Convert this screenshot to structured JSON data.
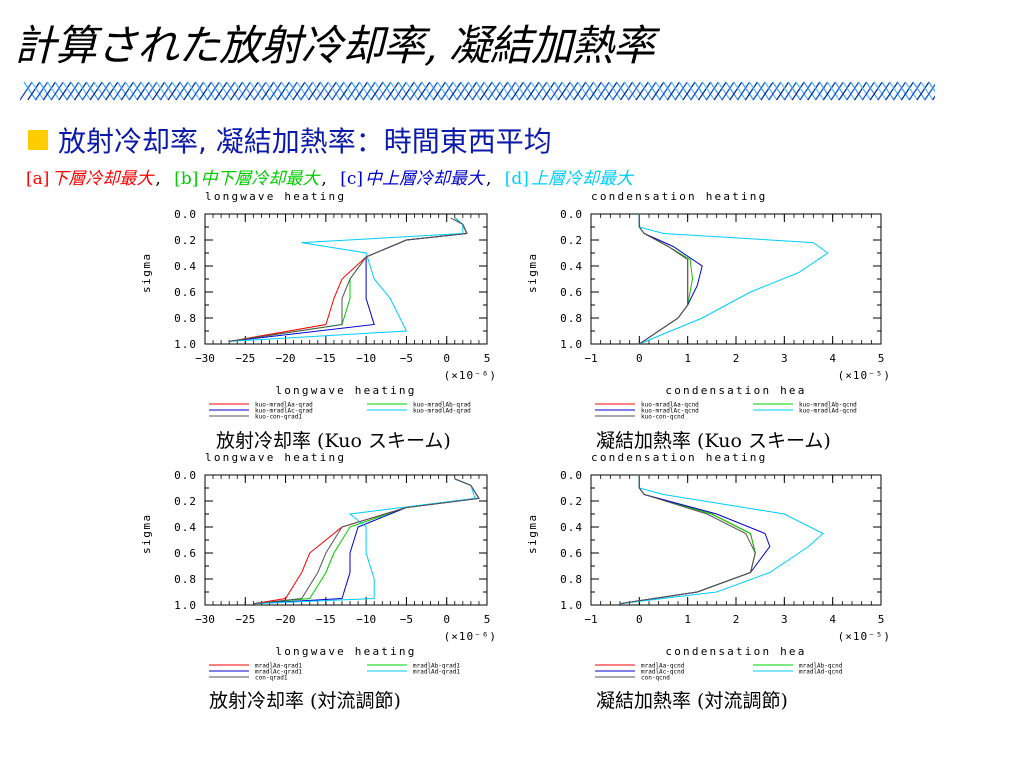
{
  "title": "計算された放射冷却率, 凝結加熱率",
  "subtitle": "放射冷却率, 凝結加熱率：時間東西平均",
  "cases": [
    {
      "tag": "[a]",
      "text": "下層冷却最大",
      "sep": ",",
      "color": "#ff0000"
    },
    {
      "tag": "[b]",
      "text": "中下層冷却最大",
      "sep": ",",
      "color": "#00cc00"
    },
    {
      "tag": "[c]",
      "text": "中上層冷却最大",
      "sep": ",",
      "color": "#0000cc"
    },
    {
      "tag": "[d]",
      "text": "上層冷却最大",
      "sep": "",
      "color": "#00ccff"
    }
  ],
  "colors": {
    "a": "#ff0000",
    "b": "#00cc00",
    "c": "#0000cc",
    "d": "#00ccff",
    "con": "#555555"
  },
  "captions": {
    "tl": "放射冷却率 (Kuo スキーム)",
    "tr": "凝結加熱率 (Kuo スキーム)",
    "bl": "放射冷却率 (対流調節)",
    "br": "凝結加熱率 (対流調節)"
  },
  "chart_data": [
    {
      "id": "tl",
      "type": "line",
      "title": "longwave heating",
      "xtitle": "longwave heating",
      "ylabel": "sigma",
      "exponent": "(×10⁻⁶)",
      "xlim": [
        -30,
        5
      ],
      "xticks": [
        -30,
        -25,
        -20,
        -15,
        -10,
        -5,
        0,
        5
      ],
      "ylim": [
        0,
        1
      ],
      "yticks": [
        0.0,
        0.2,
        0.4,
        0.6,
        0.8,
        1.0
      ],
      "legend": [
        "kuo-mradlAa-qrad",
        "kuo-mradlAb-qrad",
        "kuo-mradlAc-qrad",
        "kuo-mradlAd-qrad",
        "kuo-con-qrad1"
      ],
      "series": [
        {
          "name": "kuo-mradlAa-qrad",
          "color": "#ff0000",
          "x": [
            1,
            2,
            2.5,
            -5,
            -10,
            -13,
            -14,
            -15,
            -27
          ],
          "y": [
            0.03,
            0.08,
            0.15,
            0.2,
            0.33,
            0.5,
            0.65,
            0.85,
            0.98
          ]
        },
        {
          "name": "kuo-mradlAb-qrad",
          "color": "#00cc00",
          "x": [
            1,
            2,
            2.5,
            -5,
            -10,
            -12,
            -12,
            -13,
            -27
          ],
          "y": [
            0.03,
            0.08,
            0.15,
            0.2,
            0.33,
            0.5,
            0.65,
            0.85,
            0.98
          ]
        },
        {
          "name": "kuo-mradlAc-qrad",
          "color": "#0000cc",
          "x": [
            1,
            2,
            2.5,
            -5,
            -10,
            -10,
            -10,
            -9,
            -27
          ],
          "y": [
            0.03,
            0.08,
            0.15,
            0.2,
            0.33,
            0.5,
            0.65,
            0.85,
            0.98
          ]
        },
        {
          "name": "kuo-mradlAd-qrad",
          "color": "#00ccff",
          "x": [
            1,
            2,
            2,
            -18,
            -10,
            -9,
            -7,
            -5,
            -27
          ],
          "y": [
            0.03,
            0.08,
            0.15,
            0.22,
            0.3,
            0.5,
            0.65,
            0.9,
            0.98
          ]
        },
        {
          "name": "kuo-con-qrad1",
          "color": "#555555",
          "x": [
            0.5,
            2,
            2.5,
            -5,
            -10,
            -12,
            -13,
            -13,
            -27
          ],
          "y": [
            0.03,
            0.08,
            0.15,
            0.2,
            0.33,
            0.5,
            0.65,
            0.85,
            0.98
          ]
        }
      ]
    },
    {
      "id": "tr",
      "type": "line",
      "title": "condensation heating",
      "xtitle": "condensation hea",
      "ylabel": "sigma",
      "exponent": "(×10⁻⁵)",
      "xlim": [
        -1,
        5
      ],
      "xticks": [
        -1,
        0,
        1,
        2,
        3,
        4,
        5
      ],
      "ylim": [
        0,
        1
      ],
      "yticks": [
        0.0,
        0.2,
        0.4,
        0.6,
        0.8,
        1.0
      ],
      "legend": [
        "kuo-mradlAa-qcnd",
        "kuo-mradlAb-qcnd",
        "kuo-mradlAc-qcnd",
        "kuo-mradlAd-qcnd",
        "kuo-con-qcnd"
      ],
      "series": [
        {
          "name": "kuo-mradlAa-qcnd",
          "color": "#ff0000",
          "x": [
            0,
            0,
            0.1,
            0.6,
            1.0,
            1.0,
            1.0,
            0.8,
            0
          ],
          "y": [
            0.0,
            0.1,
            0.15,
            0.25,
            0.35,
            0.5,
            0.7,
            0.8,
            1.0
          ]
        },
        {
          "name": "kuo-mradlAb-qcnd",
          "color": "#00cc00",
          "x": [
            0,
            0,
            0.1,
            0.6,
            1.05,
            1.1,
            1.0,
            0.8,
            0
          ],
          "y": [
            0.0,
            0.1,
            0.15,
            0.25,
            0.35,
            0.5,
            0.7,
            0.8,
            1.0
          ]
        },
        {
          "name": "kuo-mradlAc-qcnd",
          "color": "#0000cc",
          "x": [
            0,
            0,
            0.1,
            0.7,
            1.3,
            1.2,
            1.0,
            0.8,
            0
          ],
          "y": [
            0.0,
            0.1,
            0.15,
            0.25,
            0.4,
            0.55,
            0.7,
            0.8,
            1.0
          ]
        },
        {
          "name": "kuo-mradlAd-qcnd",
          "color": "#00ccff",
          "x": [
            0,
            0,
            0.5,
            3.6,
            3.9,
            3.3,
            2.3,
            1.3,
            0
          ],
          "y": [
            0.0,
            0.1,
            0.15,
            0.22,
            0.3,
            0.45,
            0.6,
            0.8,
            1.0
          ]
        },
        {
          "name": "kuo-con-qcnd",
          "color": "#555555",
          "x": [
            0,
            0,
            0.1,
            0.6,
            1.0,
            1.0,
            1.0,
            0.8,
            0
          ],
          "y": [
            0.0,
            0.1,
            0.15,
            0.25,
            0.35,
            0.5,
            0.7,
            0.8,
            1.0
          ]
        }
      ]
    },
    {
      "id": "bl",
      "type": "line",
      "title": "longwave heating",
      "xtitle": "longwave heating",
      "ylabel": "sigma",
      "exponent": "(×10⁻⁶)",
      "xlim": [
        -30,
        5
      ],
      "xticks": [
        -30,
        -25,
        -20,
        -15,
        -10,
        -5,
        0,
        5
      ],
      "ylim": [
        0,
        1
      ],
      "yticks": [
        0.0,
        0.2,
        0.4,
        0.6,
        0.8,
        1.0
      ],
      "legend": [
        "mradlAa-qrad1",
        "mradlAb-qrad1",
        "mradlAc-qrad1",
        "mradlAd-qrad1",
        "con-qrad1"
      ],
      "series": [
        {
          "name": "mradlAa-qrad1",
          "color": "#ff0000",
          "x": [
            1,
            3,
            4,
            -5,
            -13,
            -17,
            -18,
            -20,
            -24
          ],
          "y": [
            0.03,
            0.08,
            0.18,
            0.25,
            0.4,
            0.6,
            0.75,
            0.95,
            0.99
          ]
        },
        {
          "name": "mradlAb-qrad1",
          "color": "#00cc00",
          "x": [
            1,
            3,
            4,
            -5,
            -12,
            -14,
            -15,
            -17,
            -24
          ],
          "y": [
            0.03,
            0.08,
            0.18,
            0.25,
            0.4,
            0.6,
            0.75,
            0.95,
            0.99
          ]
        },
        {
          "name": "mradlAc-qrad1",
          "color": "#0000cc",
          "x": [
            1,
            3,
            4,
            -5,
            -11,
            -12,
            -12,
            -13,
            -24
          ],
          "y": [
            0.03,
            0.08,
            0.18,
            0.25,
            0.4,
            0.6,
            0.75,
            0.95,
            0.99
          ]
        },
        {
          "name": "mradlAd-qrad1",
          "color": "#00ccff",
          "x": [
            1,
            3,
            3.5,
            -12,
            -10,
            -10,
            -9,
            -9,
            -24
          ],
          "y": [
            0.03,
            0.08,
            0.18,
            0.3,
            0.4,
            0.6,
            0.8,
            0.95,
            0.99
          ]
        },
        {
          "name": "con-qrad1",
          "color": "#555555",
          "x": [
            1,
            3,
            4,
            -5,
            -13,
            -15,
            -16,
            -18,
            -24
          ],
          "y": [
            0.03,
            0.08,
            0.18,
            0.25,
            0.4,
            0.6,
            0.75,
            0.95,
            0.99
          ]
        }
      ]
    },
    {
      "id": "br",
      "type": "line",
      "title": "condensation heating",
      "xtitle": "condensation hea",
      "ylabel": "sigma",
      "exponent": "(×10⁻⁵)",
      "xlim": [
        -1,
        5
      ],
      "xticks": [
        -1,
        0,
        1,
        2,
        3,
        4,
        5
      ],
      "ylim": [
        0,
        1
      ],
      "yticks": [
        0.0,
        0.2,
        0.4,
        0.6,
        0.8,
        1.0
      ],
      "legend": [
        "mradlAa-qcnd",
        "mradlAb-qcnd",
        "mradlAc-qcnd",
        "mradlAd-qcnd",
        "con-qcnd"
      ],
      "series": [
        {
          "name": "mradlAa-qcnd",
          "color": "#ff0000",
          "x": [
            0,
            0,
            0.1,
            1.5,
            2.3,
            2.4,
            2.3,
            1.2,
            -0.4
          ],
          "y": [
            0.0,
            0.1,
            0.15,
            0.3,
            0.45,
            0.6,
            0.75,
            0.9,
            0.99
          ]
        },
        {
          "name": "mradlAb-qcnd",
          "color": "#00cc00",
          "x": [
            0,
            0,
            0.1,
            1.5,
            2.3,
            2.4,
            2.3,
            1.2,
            -0.4
          ],
          "y": [
            0.0,
            0.1,
            0.15,
            0.3,
            0.45,
            0.6,
            0.75,
            0.9,
            0.99
          ]
        },
        {
          "name": "mradlAc-qcnd",
          "color": "#0000cc",
          "x": [
            0,
            0,
            0.1,
            1.6,
            2.6,
            2.7,
            2.3,
            1.2,
            -0.4
          ],
          "y": [
            0.0,
            0.1,
            0.15,
            0.3,
            0.45,
            0.55,
            0.75,
            0.9,
            0.99
          ]
        },
        {
          "name": "mradlAd-qcnd",
          "color": "#00ccff",
          "x": [
            0,
            0,
            0.5,
            3.0,
            3.8,
            3.5,
            2.7,
            1.6,
            -0.4
          ],
          "y": [
            0.0,
            0.1,
            0.15,
            0.3,
            0.45,
            0.55,
            0.75,
            0.9,
            0.99
          ]
        },
        {
          "name": "con-qcnd",
          "color": "#555555",
          "x": [
            0,
            0,
            0.1,
            1.4,
            2.2,
            2.4,
            2.3,
            1.2,
            -0.4
          ],
          "y": [
            0.0,
            0.1,
            0.15,
            0.3,
            0.45,
            0.6,
            0.75,
            0.9,
            0.99
          ]
        }
      ]
    }
  ]
}
